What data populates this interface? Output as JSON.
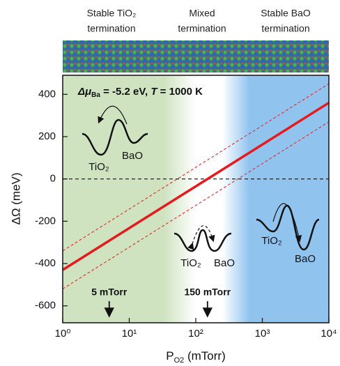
{
  "chart_data": {
    "type": "line",
    "header": [
      "Stable TiO₂",
      "termination",
      "Mixed",
      "termination",
      "Stable BaO",
      "termination"
    ],
    "title_parts": [
      "Δμ",
      "Ba",
      " = -5.2 eV, ",
      "T",
      " = 1000 K"
    ],
    "y_label": "ΔΩ (meV)",
    "x_label_parts": [
      "P",
      "O2",
      " (mTorr)"
    ],
    "x": [
      1,
      10000
    ],
    "series": [
      {
        "color": "#e8191d",
        "style": "solid",
        "values": [
          -430,
          360
        ]
      },
      {
        "color": "#e8191d",
        "style": "dashed",
        "values": [
          -340,
          450
        ]
      },
      {
        "color": "#e8191d",
        "style": "dashed",
        "values": [
          -520,
          270
        ]
      }
    ],
    "reference_line": 0,
    "log_x": true,
    "xlim": [
      1,
      10000
    ],
    "xticks": [
      {
        "value": 1,
        "label": "10⁰"
      },
      {
        "value": 10,
        "label": "10¹"
      },
      {
        "value": 100,
        "label": "10²"
      },
      {
        "value": 1000,
        "label": "10³"
      },
      {
        "value": 10000,
        "label": "10⁴"
      }
    ],
    "ylim": [
      -680,
      490
    ],
    "yticks": [
      -600,
      -400,
      -200,
      0,
      200,
      400
    ],
    "markers": [
      {
        "x": 5,
        "label": "5 mTorr"
      },
      {
        "x": 150,
        "label": "150 mTorr"
      }
    ],
    "annotations": [
      "TiO₂",
      "BaO",
      "TiO₂",
      "BaO",
      "TiO₂",
      "BaO"
    ]
  }
}
